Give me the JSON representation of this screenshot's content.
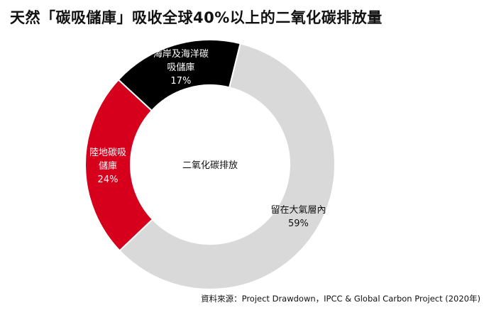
{
  "title": "天然「碳吸儲庫」吸收全球40%以上的二氧化碳排放量",
  "source": "資料來源：Project Drawdown，IPCC & Global Carbon Project (2020年)",
  "chart_data": {
    "type": "pie",
    "donut": true,
    "center_label": "二氧化碳排放",
    "slices": [
      {
        "label_lines": [
          "留在大氣層內"
        ],
        "value": 59,
        "value_label": "59%",
        "color": "#d9d9d9",
        "text_color": "#111111"
      },
      {
        "label_lines": [
          "陸地碳吸",
          "儲庫"
        ],
        "value": 24,
        "value_label": "24%",
        "color": "#d6001c",
        "text_color": "#ffffff"
      },
      {
        "label_lines": [
          "海岸及海洋碳",
          "吸儲庫"
        ],
        "value": 17,
        "value_label": "17%",
        "color": "#000000",
        "text_color": "#ffffff"
      }
    ]
  }
}
